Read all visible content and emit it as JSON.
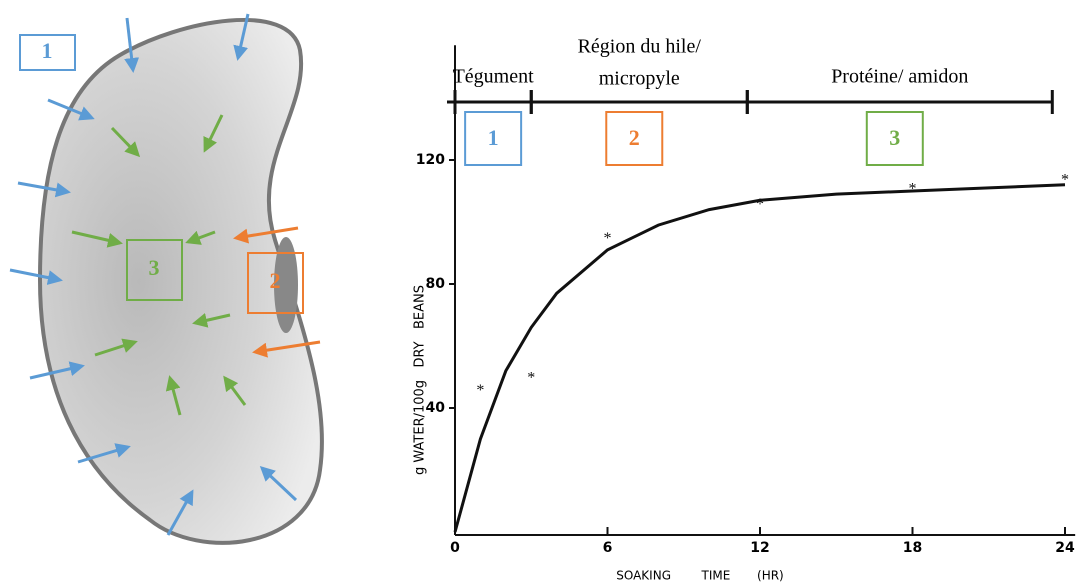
{
  "chart_data": {
    "type": "scatter",
    "ylabel": "g WATER/100g   DRY   BEANS",
    "xlabel": "SOAKING        TIME       (HR)",
    "xlim": [
      0,
      24.4
    ],
    "ylim": [
      0,
      157
    ],
    "xticks": [
      0,
      6,
      12,
      18,
      24
    ],
    "yticks": [
      40,
      80,
      120
    ],
    "points": {
      "x": [
        1,
        3,
        6,
        12,
        18,
        24
      ],
      "values": [
        46,
        50,
        95,
        106,
        111,
        114
      ],
      "color": "#111111"
    },
    "curve": {
      "x": [
        0,
        1,
        2,
        3,
        4,
        6,
        8,
        10,
        12,
        15,
        18,
        21,
        24
      ],
      "values": [
        0,
        30,
        52,
        66,
        77,
        91,
        99,
        104,
        107,
        109,
        110,
        111,
        112
      ],
      "color": "#111111"
    },
    "phases": [
      {
        "lines": [
          "Tégument"
        ],
        "number": "1",
        "color": "#5b9bd5",
        "start": 0,
        "end": 3
      },
      {
        "lines": [
          "Région du hile/",
          "micropyle"
        ],
        "number": "2",
        "color": "#ed7d31",
        "start": 3,
        "end": 11.5
      },
      {
        "lines": [
          "Protéine/ amidon"
        ],
        "number": "3",
        "color": "#70ad47",
        "start": 11.5,
        "end": 23.5
      }
    ]
  }
}
